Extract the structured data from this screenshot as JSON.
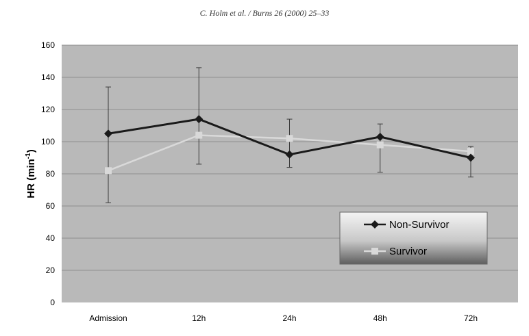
{
  "page": {
    "header": "C. Holm et al. / Burns 26 (2000) 25–33"
  },
  "chart_data": {
    "type": "line",
    "categories": [
      "Admission",
      "12h",
      "24h",
      "48h",
      "72h"
    ],
    "ylabel": "HR (min",
    "ylabel_sup": "-1",
    "ylabel_close": ")",
    "ylim": [
      0,
      160
    ],
    "yticks": [
      0,
      20,
      40,
      60,
      80,
      100,
      120,
      140,
      160
    ],
    "ytick_labels": [
      "0",
      "20",
      "40",
      "60",
      "80",
      "100",
      "120",
      "140",
      "160"
    ],
    "grid": true,
    "legend_position": "lower-right",
    "series": [
      {
        "name": "Non-Survivor",
        "marker": "diamond",
        "color": "#1a1a1a",
        "values": [
          105,
          114,
          92,
          103,
          90
        ],
        "error_upper": [
          134,
          146,
          114,
          111,
          97
        ],
        "error_lower": [
          62,
          86,
          84,
          81,
          78
        ]
      },
      {
        "name": "Survivor",
        "marker": "square",
        "color": "#d9d9d9",
        "values": [
          82,
          104,
          102,
          98,
          94
        ]
      }
    ],
    "colors": {
      "plot_background": "#b9b9b9",
      "grid": "#8e8e8e"
    }
  }
}
